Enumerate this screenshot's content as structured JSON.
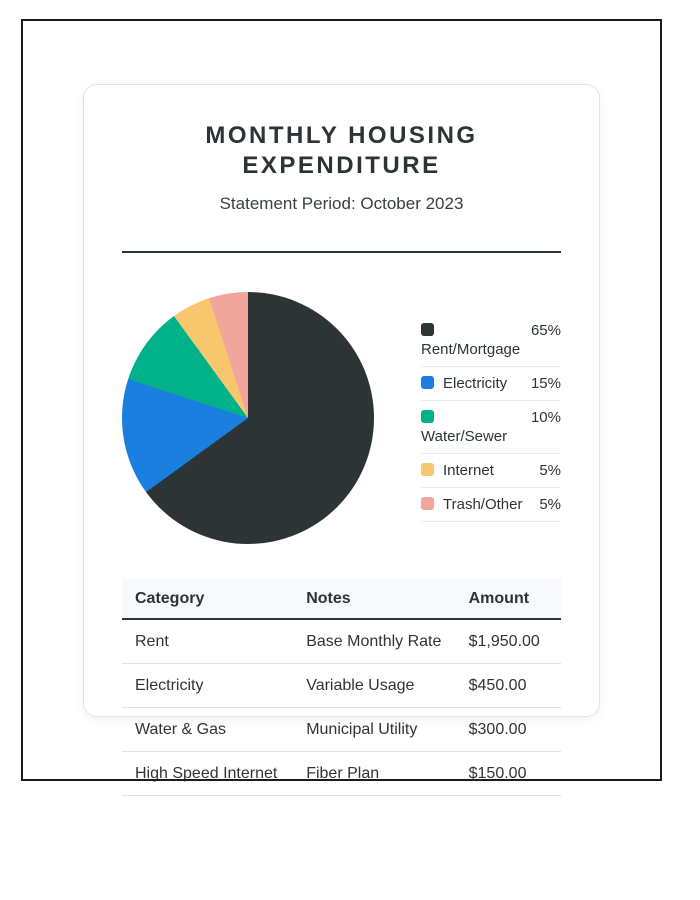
{
  "page": {
    "title": "MONTHLY HOUSING EXPENDITURE",
    "subtitle": "Statement Period: October 2023"
  },
  "chart_data": {
    "type": "pie",
    "title": "Monthly Housing Expenditure breakdown",
    "legend_position": "right",
    "labels": [
      "Rent/Mortgage",
      "Electricity",
      "Water/Sewer",
      "Internet",
      "Trash/Other"
    ],
    "values": [
      65,
      15,
      10,
      5,
      5
    ],
    "unit": "%",
    "colors": [
      "#2d3436",
      "#1b7fe0",
      "#00b189",
      "#f8c66d",
      "#f0a69b"
    ],
    "items": [
      {
        "label": "Rent/Mortgage",
        "pct": "65%",
        "color": "#2d3436"
      },
      {
        "label": "Electricity",
        "pct": "15%",
        "color": "#1b7fe0"
      },
      {
        "label": "Water/Sewer",
        "pct": "10%",
        "color": "#00b189"
      },
      {
        "label": "Internet",
        "pct": "5%",
        "color": "#f8c66d"
      },
      {
        "label": "Trash/Other",
        "pct": "5%",
        "color": "#f0a69b"
      }
    ]
  },
  "table": {
    "headers": [
      "Category",
      "Notes",
      "Amount"
    ],
    "rows": [
      {
        "category": "Rent",
        "notes": "Base Monthly Rate",
        "amount": "$1,950.00"
      },
      {
        "category": "Electricity",
        "notes": "Variable Usage",
        "amount": "$450.00"
      },
      {
        "category": "Water & Gas",
        "notes": "Municipal Utility",
        "amount": "$300.00"
      },
      {
        "category": "High Speed Internet",
        "notes": "Fiber Plan",
        "amount": "$150.00"
      }
    ]
  },
  "colors": {
    "frame_border": "#1c1c1c",
    "card_border": "#e4e4e4",
    "heading_text": "#2d3436",
    "body_text": "#333333",
    "table_header_bg": "#f8f9fa",
    "row_separator": "#dee2e6"
  }
}
